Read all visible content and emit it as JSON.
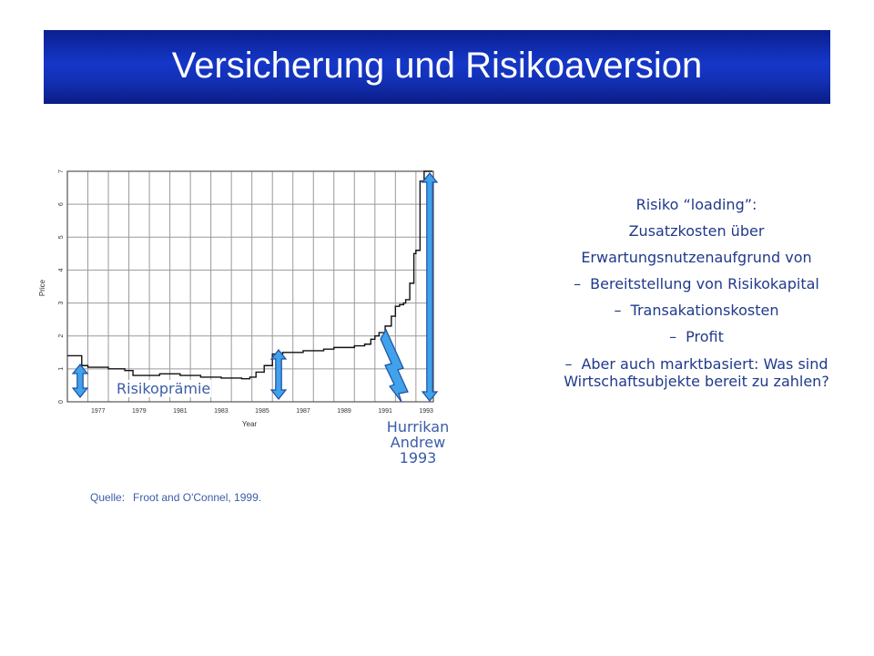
{
  "title": "Versicherung und Risikoaversion",
  "chart_data": {
    "type": "line",
    "xlabel": "Year",
    "ylabel": "Price",
    "ylim": [
      0,
      7
    ],
    "yticks": [
      "0",
      "1",
      "2",
      "3",
      "4",
      "5",
      "6",
      "7"
    ],
    "xticks": [
      "1977",
      "1979",
      "1981",
      "1983",
      "1985",
      "1987",
      "1989",
      "1991",
      "1993"
    ],
    "grid": true,
    "series": [
      {
        "x": [
          1976.0,
          1976.5,
          1976.7,
          1977.0,
          1977.5,
          1978.0,
          1978.3,
          1978.8,
          1979.2,
          1980.0,
          1980.5,
          1981.0,
          1981.5,
          1982.0,
          1982.5,
          1983.0,
          1983.5,
          1984.0,
          1984.5,
          1984.9,
          1985.2,
          1985.6,
          1986.0,
          1986.5,
          1987.0,
          1987.5,
          1988.0,
          1988.5,
          1989.0,
          1989.5,
          1990.0,
          1990.5,
          1990.8,
          1991.0,
          1991.2,
          1991.5,
          1991.8,
          1992.0,
          1992.2,
          1992.4,
          1992.5,
          1992.7,
          1992.9,
          1993.0,
          1993.2,
          1993.4,
          1993.6,
          1993.8
        ],
        "y": [
          1.4,
          1.4,
          1.1,
          1.05,
          1.05,
          1.0,
          1.0,
          0.95,
          0.8,
          0.8,
          0.85,
          0.85,
          0.8,
          0.8,
          0.75,
          0.75,
          0.72,
          0.72,
          0.7,
          0.75,
          0.9,
          1.1,
          1.45,
          1.5,
          1.5,
          1.55,
          1.55,
          1.6,
          1.65,
          1.65,
          1.7,
          1.75,
          1.9,
          2.0,
          2.1,
          2.3,
          2.6,
          2.9,
          2.95,
          3.0,
          3.1,
          3.6,
          4.5,
          4.6,
          6.7,
          7.0,
          7.0,
          7.0
        ]
      }
    ]
  },
  "annotations": {
    "risk_premium": "Risikoprämie",
    "hurricane": [
      "Hurrikan",
      "Andrew",
      "1993"
    ]
  },
  "source": {
    "label": "Quelle:",
    "text": "Froot and O'Connel, 1999."
  },
  "text_panel": {
    "lines": [
      "Risiko “loading”:",
      "Zusatzkosten über",
      "Erwartungsnutzenaufgrund von"
    ],
    "bullets": [
      {
        "dash": "–",
        "text": "Bereitstellung von Risikokapital"
      },
      {
        "dash": "–",
        "text": "Transakationskosten"
      },
      {
        "dash": "–",
        "text": "Profit"
      },
      {
        "dash": "–",
        "text": "Aber auch marktbasiert: Was sind Wirtschaftsubjekte bereit zu zahlen?"
      }
    ]
  },
  "colors": {
    "title_bg": "#1537c8",
    "arrow_fill": "#3fa2ea",
    "arrow_stroke": "#1f4fa0",
    "text": "#203a8a"
  }
}
